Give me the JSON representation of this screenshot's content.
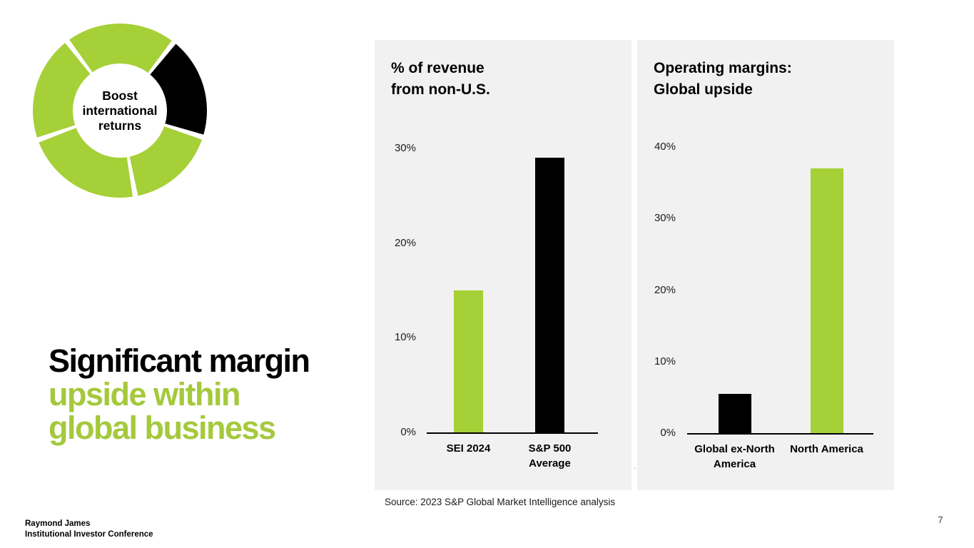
{
  "donut": {
    "label": "Boost\ninternational\nreturns",
    "stops": [
      [
        "#a6d037",
        0,
        36.5
      ],
      [
        "#ffffff",
        36.5,
        40
      ],
      [
        "#000000",
        40,
        106
      ],
      [
        "#ffffff",
        106,
        109.5
      ],
      [
        "#a6d037",
        109.5,
        168
      ],
      [
        "#ffffff",
        168,
        171.5
      ],
      [
        "#a6d037",
        171.5,
        248.5
      ],
      [
        "#ffffff",
        248.5,
        252
      ],
      [
        "#a6d037",
        252,
        321
      ],
      [
        "#ffffff",
        321,
        324.5
      ],
      [
        "#a6d037",
        324.5,
        360
      ]
    ]
  },
  "headline": {
    "line1": "Significant margin",
    "line2": "upside within",
    "line3": "global business"
  },
  "chart_data": [
    {
      "type": "bar",
      "title": "% of revenue\nfrom non-U.S.",
      "categories": [
        "SEI 2024",
        "S&P 500\nAverage"
      ],
      "values": [
        15,
        29
      ],
      "bar_colors": [
        "#a6d037",
        "#000000"
      ],
      "yticks": [
        0,
        10,
        20,
        30
      ],
      "tick_suffix": "%",
      "ylim": [
        0,
        30
      ],
      "grid": false,
      "legend": null
    },
    {
      "type": "bar",
      "title": "Operating margins:\nGlobal upside",
      "categories": [
        "Global ex-North\nAmerica",
        "North America"
      ],
      "values": [
        5.5,
        37
      ],
      "bar_colors": [
        "#000000",
        "#a6d037"
      ],
      "yticks": [
        0,
        10,
        20,
        30,
        40
      ],
      "tick_suffix": "%",
      "ylim": [
        0,
        40
      ],
      "grid": false,
      "legend": null
    }
  ],
  "colors": {
    "green": "#a6d037",
    "black": "#000000",
    "headline_black": "#000000",
    "headline_green": "#a4c93c",
    "panel_bg": "#f1f1f1"
  },
  "stray_mark": ".",
  "source_note": "Source: 2023 S&P Global Market Intelligence analysis",
  "footer": {
    "line1": "Raymond James",
    "line2": "Institutional Investor Conference"
  },
  "page_number": "7"
}
